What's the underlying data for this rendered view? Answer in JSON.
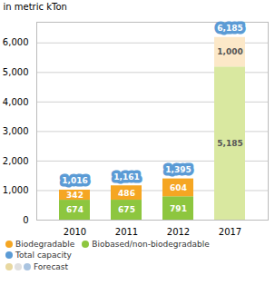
{
  "chart_data": {
    "type": "bar",
    "stacked": true,
    "categories": [
      "2010",
      "2011",
      "2012",
      "2017"
    ],
    "series": [
      {
        "name": "Biobased/non-biodegradable",
        "color": "#8dc63f",
        "colors": [
          "#8dc63f",
          "#8dc63f",
          "#8dc63f",
          "#d9e8a0"
        ],
        "values": [
          674,
          675,
          791,
          5185
        ],
        "value_labels": [
          "674",
          "675",
          "791",
          "5,185"
        ]
      },
      {
        "name": "Biodegradable",
        "color": "#f5a623",
        "colors": [
          "#f5a623",
          "#f5a623",
          "#f5a623",
          "#fce8c8"
        ],
        "values": [
          342,
          486,
          604,
          1000
        ],
        "value_labels": [
          "342",
          "486",
          "604",
          "1,000"
        ]
      }
    ],
    "total_capacity": {
      "name": "Total capacity",
      "color": "#5b9bd5",
      "values": [
        1016,
        1161,
        1395,
        6185
      ],
      "value_labels": [
        "1,016",
        "1,161",
        "1,395",
        "6,185"
      ]
    },
    "forecast": {
      "name": "Forecast",
      "colors": [
        "#e8d8a0",
        "#e0e0e0",
        "#aac4e0"
      ]
    },
    "ylabel": "in metric kTon",
    "ylim": [
      0,
      6700
    ],
    "yticks": [
      0,
      {
        "value": 1000,
        "label": "1,000"
      },
      {
        "value": 2000,
        "label": "2,000"
      },
      {
        "value": 3000,
        "label": "3,000"
      },
      {
        "value": 4000,
        "label": "4,000"
      },
      {
        "value": 5000,
        "label": "5,000"
      },
      {
        "value": 6000,
        "label": "6,000"
      }
    ],
    "grid": true,
    "data_labels": true,
    "legend": "bottom"
  }
}
